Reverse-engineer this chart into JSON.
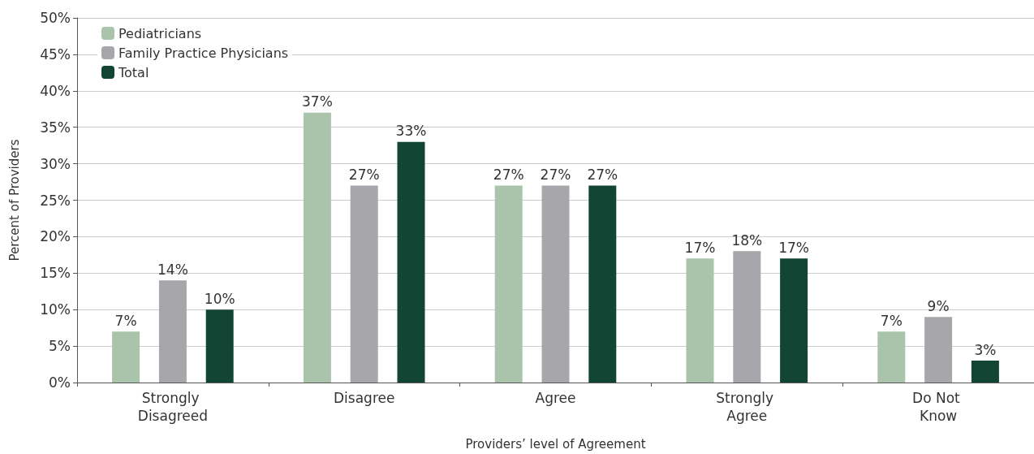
{
  "chart_data": {
    "type": "bar",
    "xlabel": "Providers’ level of Agreement",
    "ylabel": "Percent of Providers",
    "categories": [
      "Strongly Disagreed",
      "Disagree",
      "Agree",
      "Strongly Agree",
      "Do Not Know"
    ],
    "series": [
      {
        "name": "Pediatricians",
        "color": "#a9c4ab",
        "values": [
          7,
          37,
          27,
          17,
          7
        ],
        "value_labels": [
          "7%",
          "37%",
          "27%",
          "17%",
          "7%"
        ]
      },
      {
        "name": "Family Practice Physicians",
        "color": "#a7a7ab",
        "values": [
          14,
          27,
          27,
          18,
          9
        ],
        "value_labels": [
          "14%",
          "27%",
          "27%",
          "18%",
          "9%"
        ]
      },
      {
        "name": "Total",
        "color": "#134535",
        "values": [
          10,
          33,
          27,
          17,
          3
        ],
        "value_labels": [
          "10%",
          "33%",
          "27%",
          "17%",
          "3%"
        ]
      }
    ],
    "ylim": [
      0,
      50
    ],
    "yticks": [
      {
        "value": 0,
        "label": "0%"
      },
      {
        "value": 5,
        "label": "5%"
      },
      {
        "value": 10,
        "label": "10%"
      },
      {
        "value": 15,
        "label": "15%"
      },
      {
        "value": 20,
        "label": "20%"
      },
      {
        "value": 25,
        "label": "25%"
      },
      {
        "value": 30,
        "label": "30%"
      },
      {
        "value": 35,
        "label": "35%"
      },
      {
        "value": 40,
        "label": "40%"
      },
      {
        "value": 45,
        "label": "45%"
      },
      {
        "value": 50,
        "label": "50%"
      }
    ],
    "grid": "y",
    "legend": "top left"
  }
}
